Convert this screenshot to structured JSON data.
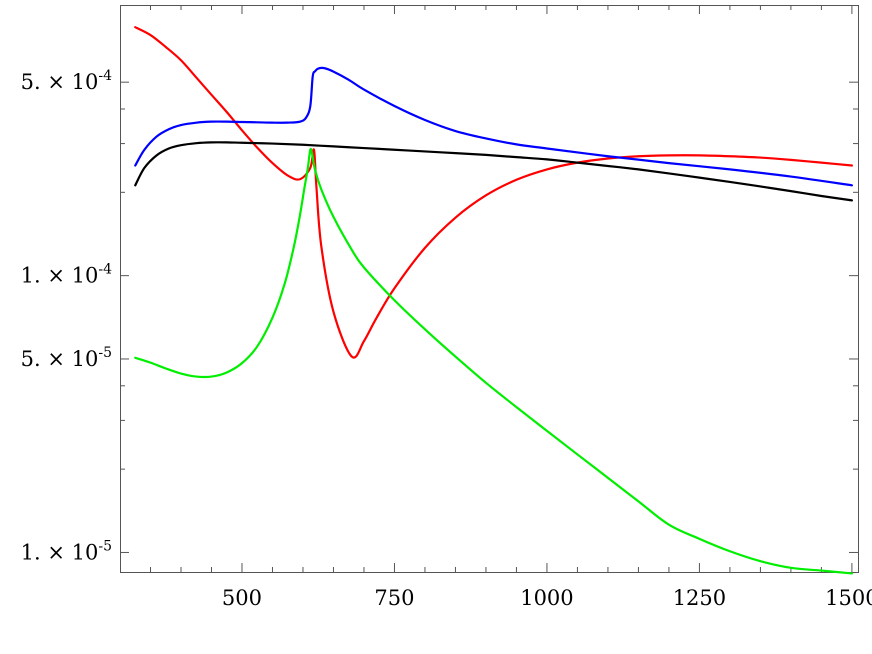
{
  "chart_data": {
    "type": "line",
    "title": "",
    "xlabel": "",
    "ylabel": "",
    "xscale": "linear",
    "yscale": "log",
    "xlim": [
      300,
      1510
    ],
    "ylim": [
      8.5e-06,
      0.00095
    ],
    "grid": false,
    "x_ticks_major": [
      500,
      750,
      1000,
      1250,
      1500
    ],
    "x_tick_labels": [
      "500",
      "750",
      "1000",
      "1250",
      "1500"
    ],
    "y_ticks_major": [
      1e-05,
      5e-05,
      0.0001,
      0.0005
    ],
    "y_tick_labels": [
      {
        "mant": "1.",
        "exp": "-5"
      },
      {
        "mant": "5.",
        "exp": "-5"
      },
      {
        "mant": "1.",
        "exp": "-4"
      },
      {
        "mant": "5.",
        "exp": "-4"
      }
    ],
    "y_ticks_minor": [
      2e-05,
      3e-05,
      4e-05,
      0.0002,
      0.0003,
      0.0004
    ],
    "series": [
      {
        "color": "#ff0000",
        "x": [
          325,
          350,
          375,
          400,
          425,
          450,
          475,
          500,
          525,
          550,
          575,
          595,
          612,
          618,
          622,
          630,
          650,
          680,
          700,
          720,
          750,
          800,
          850,
          900,
          950,
          1000,
          1050,
          1100,
          1150,
          1200,
          1250,
          1300,
          1350,
          1400,
          1450,
          1500
        ],
        "y": [
          0.00079,
          0.00074,
          0.00067,
          0.0006,
          0.00052,
          0.00045,
          0.00039,
          0.000335,
          0.00029,
          0.000255,
          0.00023,
          0.000223,
          0.000245,
          0.000285,
          0.00021,
          0.000128,
          7.4e-05,
          5.1e-05,
          5.8e-05,
          7e-05,
          9e-05,
          0.000126,
          0.000162,
          0.000195,
          0.000222,
          0.000242,
          0.000256,
          0.000265,
          0.00027,
          0.000272,
          0.000272,
          0.00027,
          0.000267,
          0.000262,
          0.000256,
          0.00025
        ]
      },
      {
        "color": "#0000ff",
        "x": [
          325,
          340,
          360,
          380,
          400,
          425,
          450,
          475,
          500,
          525,
          550,
          575,
          595,
          605,
          612,
          616,
          620,
          625,
          635,
          650,
          675,
          700,
          750,
          800,
          850,
          900,
          950,
          1000,
          1100,
          1200,
          1300,
          1400,
          1500
        ],
        "y": [
          0.00025,
          0.000285,
          0.000318,
          0.000338,
          0.00035,
          0.000357,
          0.00036,
          0.00036,
          0.000359,
          0.000358,
          0.000357,
          0.000357,
          0.00036,
          0.000372,
          0.00041,
          0.000525,
          0.000548,
          0.00056,
          0.000562,
          0.000546,
          0.00051,
          0.00047,
          0.00041,
          0.000365,
          0.000333,
          0.000313,
          0.000298,
          0.000288,
          0.00027,
          0.000255,
          0.000242,
          0.000228,
          0.000212
        ]
      },
      {
        "color": "#000000",
        "x": [
          325,
          340,
          360,
          380,
          400,
          425,
          450,
          475,
          500,
          550,
          600,
          650,
          700,
          750,
          800,
          850,
          900,
          950,
          1000,
          1050,
          1100,
          1150,
          1200,
          1250,
          1300,
          1350,
          1400,
          1450,
          1500
        ],
        "y": [
          0.000212,
          0.000245,
          0.000272,
          0.000288,
          0.000296,
          0.000301,
          0.000303,
          0.000303,
          0.000302,
          0.0003,
          0.000297,
          0.000293,
          0.000289,
          0.000285,
          0.000281,
          0.000277,
          0.000273,
          0.000268,
          0.000263,
          0.000256,
          0.000249,
          0.000242,
          0.000234,
          0.000226,
          0.000218,
          0.00021,
          0.000202,
          0.000194,
          0.000187
        ]
      },
      {
        "color": "#00ee00",
        "x": [
          325,
          350,
          375,
          400,
          425,
          450,
          475,
          500,
          525,
          550,
          570,
          585,
          595,
          602,
          608,
          612,
          615,
          620,
          630,
          650,
          680,
          700,
          750,
          800,
          850,
          900,
          950,
          1000,
          1050,
          1100,
          1150,
          1200,
          1250,
          1300,
          1350,
          1400,
          1450,
          1500
        ],
        "y": [
          5.05e-05,
          4.85e-05,
          4.62e-05,
          4.43e-05,
          4.32e-05,
          4.32e-05,
          4.47e-05,
          4.83e-05,
          5.55e-05,
          7.05e-05,
          9.35e-05,
          0.000127,
          0.000165,
          0.000205,
          0.000245,
          0.000285,
          0.000275,
          0.00024,
          0.000205,
          0.000163,
          0.000124,
          0.000107,
          8.15e-05,
          6.4e-05,
          5.1e-05,
          4.1e-05,
          3.35e-05,
          2.75e-05,
          2.26e-05,
          1.86e-05,
          1.53e-05,
          1.26e-05,
          1.12e-05,
          1.01e-05,
          9.3e-06,
          8.8e-06,
          8.6e-06,
          8.4e-06
        ]
      }
    ]
  }
}
